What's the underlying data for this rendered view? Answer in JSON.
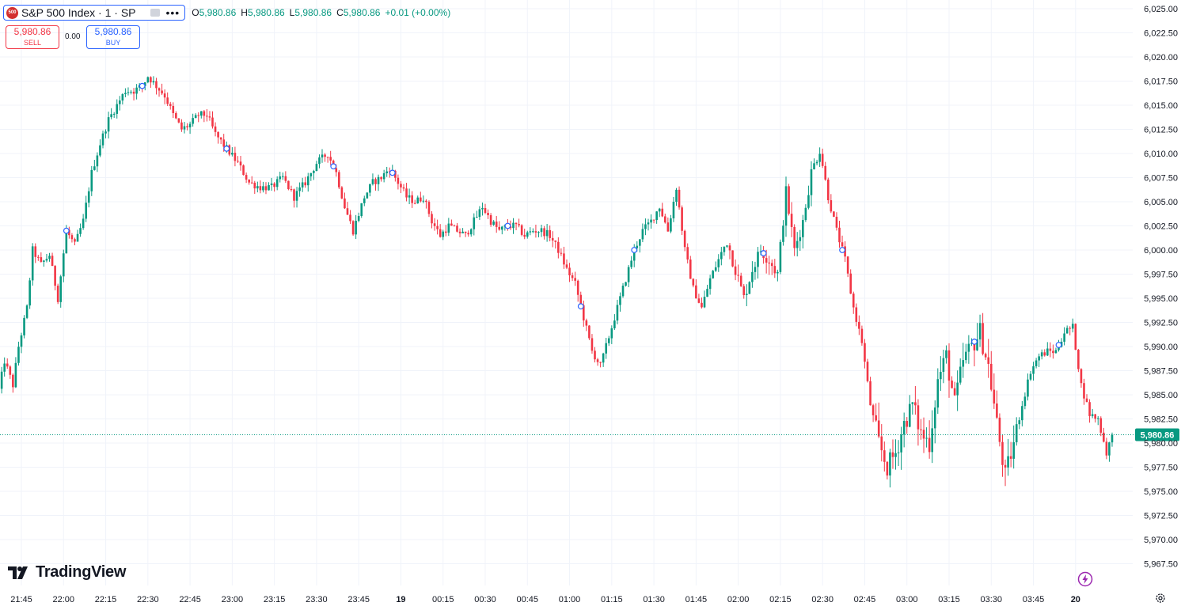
{
  "symbol": {
    "title": "S&P 500 Index · 1 · SP",
    "logo_text": "500",
    "more": "•••"
  },
  "ohlc": {
    "o_label": "O",
    "o_value": "5,980.86",
    "h_label": "H",
    "h_value": "5,980.86",
    "l_label": "L",
    "l_value": "5,980.86",
    "c_label": "C",
    "c_value": "5,980.86",
    "change": "+0.01 (+0.00%)"
  },
  "trade": {
    "sell_price": "5,980.86",
    "sell_label": "SELL",
    "spread": "0.00",
    "buy_price": "5,980.86",
    "buy_label": "BUY"
  },
  "brand": {
    "name": "TradingView"
  },
  "colors": {
    "up": "#089981",
    "down": "#f23645",
    "grid": "#f0f3fa",
    "axis_text": "#131722",
    "accent": "#2962ff"
  },
  "chart_data": {
    "type": "candlestick",
    "interval": "1 minute",
    "last_price": 5980.86,
    "last_price_label": "5,980.86",
    "ylim": [
      5966.0,
      6026.0
    ],
    "y_ticks": [
      6025.0,
      6022.5,
      6020.0,
      6017.5,
      6015.0,
      6012.5,
      6010.0,
      6007.5,
      6005.0,
      6002.5,
      6000.0,
      5997.5,
      5995.0,
      5992.5,
      5990.0,
      5987.5,
      5985.0,
      5982.5,
      5980.0,
      5977.5,
      5975.0,
      5972.5,
      5970.0,
      5967.5
    ],
    "y_tick_labels": [
      "6,025.00",
      "6,022.50",
      "6,020.00",
      "6,017.50",
      "6,015.00",
      "6,012.50",
      "6,010.00",
      "6,007.50",
      "6,005.00",
      "6,002.50",
      "6,000.00",
      "5,997.50",
      "5,995.00",
      "5,992.50",
      "5,990.00",
      "5,987.50",
      "5,985.00",
      "5,982.50",
      "5,980.00",
      "5,977.50",
      "5,975.00",
      "5,972.50",
      "5,970.00",
      "5,967.50"
    ],
    "x_ticks": [
      "21:45",
      "22:00",
      "22:15",
      "22:30",
      "22:45",
      "23:00",
      "23:15",
      "23:30",
      "23:45",
      "19",
      "00:15",
      "00:30",
      "00:45",
      "01:00",
      "01:15",
      "01:30",
      "01:45",
      "02:00",
      "02:15",
      "02:30",
      "02:45",
      "03:00",
      "03:15",
      "03:30",
      "03:45",
      "20"
    ],
    "x_tick_minutes": [
      15,
      30,
      45,
      60,
      75,
      90,
      105,
      120,
      135,
      150,
      165,
      180,
      195,
      210,
      225,
      240,
      255,
      270,
      285,
      300,
      315,
      330,
      345,
      360,
      375,
      390
    ],
    "x_range_minutes": [
      7,
      395
    ],
    "bold_x_ticks": [
      "19",
      "20"
    ],
    "trend_anchors": [
      [
        7,
        5985.5
      ],
      [
        9,
        5988.5
      ],
      [
        12,
        5986.0
      ],
      [
        14,
        5990.0
      ],
      [
        17,
        5994.0
      ],
      [
        19,
        6000.0
      ],
      [
        22,
        5998.5
      ],
      [
        25,
        5999.5
      ],
      [
        28,
        5995.0
      ],
      [
        31,
        6002.0
      ],
      [
        34,
        6000.5
      ],
      [
        37,
        6003.0
      ],
      [
        40,
        6008.0
      ],
      [
        43,
        6011.0
      ],
      [
        46,
        6013.5
      ],
      [
        49,
        6015.0
      ],
      [
        52,
        6016.5
      ],
      [
        55,
        6016.5
      ],
      [
        58,
        6017.0
      ],
      [
        60,
        6018.0
      ],
      [
        63,
        6017.0
      ],
      [
        66,
        6016.0
      ],
      [
        69,
        6014.0
      ],
      [
        72,
        6012.5
      ],
      [
        75,
        6013.0
      ],
      [
        78,
        6014.0
      ],
      [
        81,
        6014.0
      ],
      [
        84,
        6012.0
      ],
      [
        88,
        6010.5
      ],
      [
        92,
        6009.0
      ],
      [
        96,
        6007.0
      ],
      [
        100,
        6006.5
      ],
      [
        104,
        6006.5
      ],
      [
        108,
        6007.5
      ],
      [
        112,
        6005.5
      ],
      [
        116,
        6007.0
      ],
      [
        120,
        6009.0
      ],
      [
        124,
        6010.0
      ],
      [
        127,
        6008.0
      ],
      [
        130,
        6004.5
      ],
      [
        133,
        6002.0
      ],
      [
        137,
        6005.5
      ],
      [
        140,
        6007.0
      ],
      [
        143,
        6007.5
      ],
      [
        146,
        6008.5
      ],
      [
        149,
        6007.0
      ],
      [
        152,
        6005.5
      ],
      [
        155,
        6005.0
      ],
      [
        158,
        6005.5
      ],
      [
        161,
        6003.0
      ],
      [
        164,
        6001.5
      ],
      [
        167,
        6002.5
      ],
      [
        170,
        6002.0
      ],
      [
        173,
        6001.5
      ],
      [
        176,
        6003.0
      ],
      [
        179,
        6004.5
      ],
      [
        182,
        6003.0
      ],
      [
        185,
        6002.0
      ],
      [
        188,
        6002.5
      ],
      [
        191,
        6002.5
      ],
      [
        194,
        6001.5
      ],
      [
        197,
        6002.0
      ],
      [
        200,
        6002.0
      ],
      [
        203,
        6001.5
      ],
      [
        206,
        6000.0
      ],
      [
        209,
        5998.0
      ],
      [
        212,
        5996.5
      ],
      [
        215,
        5993.0
      ],
      [
        218,
        5989.5
      ],
      [
        221,
        5988.0
      ],
      [
        224,
        5991.0
      ],
      [
        227,
        5994.0
      ],
      [
        230,
        5997.0
      ],
      [
        233,
        6000.0
      ],
      [
        236,
        6002.0
      ],
      [
        239,
        6003.0
      ],
      [
        242,
        6004.5
      ],
      [
        245,
        6002.0
      ],
      [
        248,
        6006.5
      ],
      [
        251,
        6000.0
      ],
      [
        254,
        5996.0
      ],
      [
        257,
        5994.0
      ],
      [
        260,
        5997.0
      ],
      [
        263,
        5999.0
      ],
      [
        266,
        6001.0
      ],
      [
        269,
        5998.0
      ],
      [
        272,
        5995.0
      ],
      [
        275,
        5998.0
      ],
      [
        278,
        6000.0
      ],
      [
        281,
        5999.0
      ],
      [
        284,
        5997.5
      ],
      [
        287,
        6006.0
      ],
      [
        290,
        6000.0
      ],
      [
        293,
        6003.0
      ],
      [
        296,
        6008.0
      ],
      [
        299,
        6010.5
      ],
      [
        302,
        6005.5
      ],
      [
        305,
        6002.0
      ],
      [
        308,
        5999.0
      ],
      [
        311,
        5994.0
      ],
      [
        314,
        5990.5
      ],
      [
        317,
        5984.0
      ],
      [
        320,
        5980.0
      ],
      [
        323,
        5977.5
      ],
      [
        326,
        5979.0
      ],
      [
        329,
        5982.0
      ],
      [
        332,
        5984.0
      ],
      [
        335,
        5981.0
      ],
      [
        338,
        5980.0
      ],
      [
        341,
        5986.5
      ],
      [
        344,
        5989.0
      ],
      [
        347,
        5984.0
      ],
      [
        350,
        5988.5
      ],
      [
        353,
        5990.0
      ],
      [
        356,
        5991.5
      ],
      [
        359,
        5988.0
      ],
      [
        362,
        5982.0
      ],
      [
        365,
        5976.5
      ],
      [
        368,
        5980.0
      ],
      [
        371,
        5984.0
      ],
      [
        374,
        5987.5
      ],
      [
        377,
        5989.0
      ],
      [
        380,
        5989.5
      ],
      [
        383,
        5989.5
      ],
      [
        386,
        5991.5
      ],
      [
        389,
        5992.0
      ],
      [
        392,
        5986.0
      ],
      [
        395,
        5983.0
      ],
      [
        398,
        5982.5
      ],
      [
        401,
        5979.0
      ],
      [
        403,
        5980.9
      ]
    ],
    "event_markers_minutes": [
      31,
      58,
      88,
      126,
      147,
      188,
      214,
      233,
      279,
      307,
      354,
      384
    ]
  }
}
